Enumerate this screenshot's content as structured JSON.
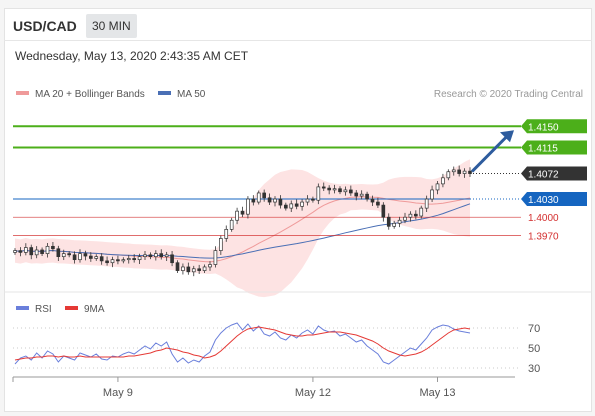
{
  "header": {
    "symbol": "USD/CAD",
    "timeframe": "30 MIN",
    "datetime": "Wednesday, May 13, 2020 2:43:35 AM CET"
  },
  "legend": {
    "ma20_bb": "MA 20 + Bollinger Bands",
    "ma50": "MA 50",
    "credit": "Research © 2020 Trading Central"
  },
  "rsi_legend": {
    "rsi": "RSI",
    "ma9": "9MA"
  },
  "colors": {
    "bb_fill": "#fde3e3",
    "ma20": "#ef9a9a",
    "ma50": "#4a6fb5",
    "green_level": "#4caf1a",
    "blue_level": "#1565c0",
    "red_level": "#d32f2f",
    "current_price": "#333333",
    "arrow": "#2e5c9e",
    "rsi": "#6a7fdb",
    "rsi_ma": "#e53935"
  },
  "chart_data": [
    {
      "type": "candlestick",
      "title": "USD/CAD 30 MIN",
      "x_ticks": [
        "May 9",
        "May 12",
        "May 13"
      ],
      "ylim": [
        1.388,
        1.419
      ],
      "close_series": [
        1.3945,
        1.3942,
        1.395,
        1.3938,
        1.3946,
        1.394,
        1.3952,
        1.3948,
        1.3935,
        1.394,
        1.3938,
        1.393,
        1.394,
        1.3936,
        1.3932,
        1.3935,
        1.3928,
        1.3925,
        1.393,
        1.3928,
        1.393,
        1.3932,
        1.393,
        1.3935,
        1.3938,
        1.3935,
        1.394,
        1.3935,
        1.3938,
        1.3925,
        1.3912,
        1.3918,
        1.391,
        1.3915,
        1.3912,
        1.3918,
        1.3922,
        1.3945,
        1.3965,
        1.398,
        1.3995,
        1.401,
        1.4005,
        1.403,
        1.4025,
        1.404,
        1.4032,
        1.4025,
        1.403,
        1.402,
        1.4015,
        1.4022,
        1.4018,
        1.4025,
        1.403,
        1.4028,
        1.405,
        1.4048,
        1.4045,
        1.4047,
        1.4042,
        1.4045,
        1.404,
        1.4035,
        1.4038,
        1.403,
        1.4025,
        1.402,
        1.4,
        1.3985,
        1.399,
        1.3995,
        1.4,
        1.4005,
        1.4002,
        1.4015,
        1.403,
        1.4045,
        1.4055,
        1.4065,
        1.4075,
        1.4078,
        1.4072,
        1.4076,
        1.4072
      ],
      "levels": [
        {
          "value": 1.415,
          "label": "1.4150",
          "kind": "resistance"
        },
        {
          "value": 1.4115,
          "label": "1.4115",
          "kind": "resistance"
        },
        {
          "value": 1.4072,
          "label": "1.4072",
          "kind": "current"
        },
        {
          "value": 1.403,
          "label": "1.4030",
          "kind": "pivot"
        },
        {
          "value": 1.4,
          "label": "1.4000",
          "kind": "support"
        },
        {
          "value": 1.397,
          "label": "1.3970",
          "kind": "support"
        }
      ],
      "arrow_target": 1.415
    },
    {
      "type": "line",
      "title": "RSI",
      "ylim": [
        20,
        80
      ],
      "y_ticks": [
        70,
        50,
        30
      ],
      "series": [
        {
          "name": "RSI",
          "values": [
            34,
            40,
            42,
            38,
            45,
            40,
            47,
            44,
            36,
            42,
            40,
            38,
            45,
            43,
            41,
            44,
            39,
            38,
            42,
            41,
            44,
            46,
            44,
            48,
            52,
            49,
            55,
            52,
            56,
            44,
            36,
            40,
            35,
            38,
            36,
            42,
            46,
            58,
            65,
            70,
            73,
            75,
            68,
            74,
            67,
            72,
            64,
            62,
            66,
            60,
            58,
            63,
            60,
            65,
            68,
            64,
            72,
            68,
            66,
            67,
            62,
            64,
            60,
            56,
            58,
            52,
            48,
            44,
            36,
            34,
            38,
            42,
            46,
            50,
            48,
            54,
            60,
            68,
            71,
            73,
            72,
            69,
            67,
            66,
            65
          ]
        },
        {
          "name": "9MA",
          "values": [
            38,
            39,
            40,
            40,
            41,
            41,
            42,
            42,
            41,
            42,
            41,
            41,
            42,
            41,
            41,
            41,
            41,
            41,
            41,
            41,
            41,
            42,
            42,
            43,
            44,
            45,
            47,
            48,
            50,
            49,
            48,
            46,
            45,
            43,
            42,
            40,
            41,
            43,
            47,
            52,
            57,
            62,
            66,
            69,
            70,
            71,
            70,
            69,
            68,
            66,
            64,
            63,
            62,
            62,
            63,
            63,
            64,
            65,
            66,
            66,
            66,
            65,
            64,
            63,
            61,
            59,
            57,
            54,
            50,
            47,
            45,
            43,
            42,
            43,
            44,
            46,
            49,
            53,
            57,
            61,
            65,
            68,
            69,
            70,
            69
          ]
        }
      ]
    }
  ]
}
